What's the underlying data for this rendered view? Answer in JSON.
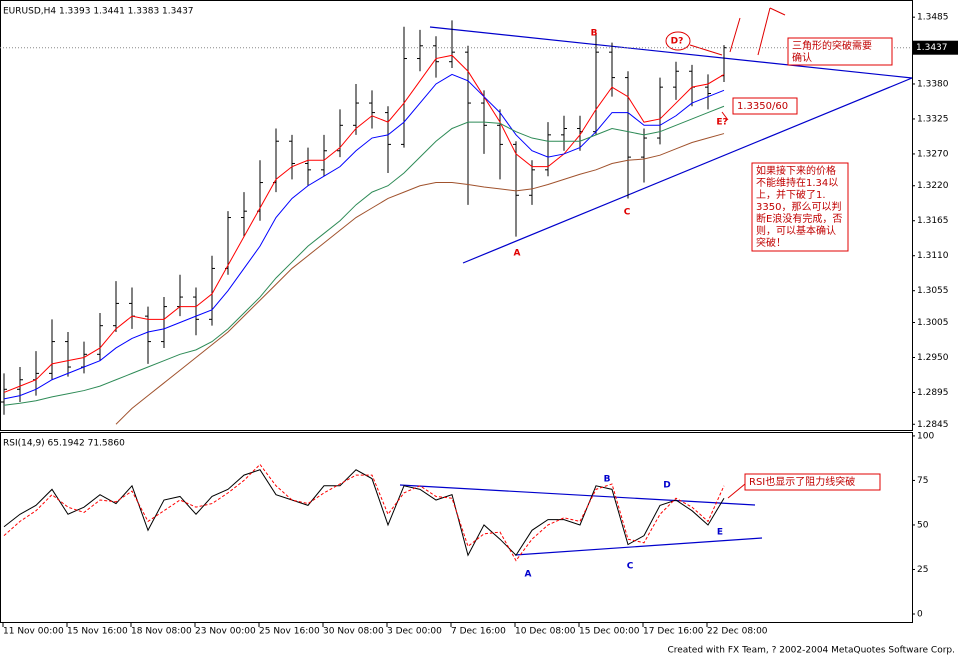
{
  "chart_data": [
    {
      "type": "ohlc",
      "title": "EURUSD,H4  1.3393 1.3441 1.3383 1.3437",
      "categories": [
        "11 Nov 00:00",
        null,
        null,
        null,
        "15 Nov 16:00",
        null,
        null,
        null,
        "18 Nov 08:00",
        null,
        null,
        null,
        "23 Nov 00:00",
        null,
        null,
        null,
        "25 Nov 16:00",
        null,
        null,
        null,
        "30 Nov 08:00",
        null,
        null,
        null,
        "3 Dec 00:00",
        null,
        null,
        null,
        "7 Dec 16:00",
        null,
        null,
        null,
        "10 Dec 08:00",
        null,
        null,
        null,
        "15 Dec 00:00",
        null,
        null,
        null,
        "17 Dec 16:00",
        null,
        null,
        null,
        "22 Dec 08:00",
        null
      ],
      "open": [
        1.288,
        1.29,
        1.2915,
        1.2925,
        1.2975,
        1.2935,
        1.2955,
        1.3,
        1.3035,
        1.3015,
        1.2975,
        1.303,
        1.3045,
        1.301,
        1.309,
        1.317,
        1.318,
        1.3225,
        1.329,
        1.3255,
        1.3245,
        1.3275,
        1.3315,
        1.335,
        1.3335,
        1.3285,
        1.342,
        1.344,
        1.3415,
        1.343,
        1.335,
        1.3315,
        1.3285,
        1.3205,
        1.3245,
        1.33,
        1.331,
        1.3305,
        1.343,
        1.339,
        1.3265,
        1.3295,
        1.3375,
        1.34,
        1.3375,
        1.3393
      ],
      "high": [
        1.2925,
        1.2935,
        1.296,
        1.301,
        1.299,
        1.2975,
        1.302,
        1.307,
        1.306,
        1.303,
        1.3045,
        1.308,
        1.306,
        1.311,
        1.318,
        1.321,
        1.326,
        1.331,
        1.33,
        1.328,
        1.33,
        1.334,
        1.338,
        1.337,
        1.3345,
        1.347,
        1.3465,
        1.3455,
        1.348,
        1.344,
        1.337,
        1.334,
        1.329,
        1.326,
        1.332,
        1.333,
        1.333,
        1.346,
        1.3445,
        1.34,
        1.331,
        1.339,
        1.3415,
        1.341,
        1.3395,
        1.3441
      ],
      "low": [
        1.286,
        1.288,
        1.289,
        1.2915,
        1.292,
        1.2925,
        1.2945,
        1.299,
        1.2995,
        1.294,
        1.2965,
        1.3015,
        1.2985,
        1.3,
        1.308,
        1.314,
        1.3165,
        1.321,
        1.323,
        1.322,
        1.3235,
        1.3265,
        1.33,
        1.331,
        1.324,
        1.328,
        1.34,
        1.339,
        1.3405,
        1.319,
        1.327,
        1.323,
        1.314,
        1.319,
        1.3235,
        1.3275,
        1.3275,
        1.33,
        1.336,
        1.32,
        1.3225,
        1.3285,
        1.3355,
        1.3345,
        1.334,
        1.3383
      ],
      "close": [
        1.29,
        1.2915,
        1.2925,
        1.2975,
        1.2935,
        1.2955,
        1.3,
        1.3035,
        1.3015,
        1.2975,
        1.303,
        1.3045,
        1.301,
        1.309,
        1.317,
        1.318,
        1.3225,
        1.329,
        1.3255,
        1.3245,
        1.3275,
        1.3315,
        1.335,
        1.3335,
        1.3285,
        1.342,
        1.344,
        1.3415,
        1.343,
        1.335,
        1.3315,
        1.3285,
        1.3205,
        1.3245,
        1.33,
        1.331,
        1.3305,
        1.343,
        1.339,
        1.3265,
        1.3295,
        1.3375,
        1.34,
        1.3375,
        1.3365,
        1.3437
      ],
      "color": "#000000",
      "series": [
        {
          "color": "#ff0000",
          "values": [
            1.2895,
            1.2905,
            1.2915,
            1.294,
            1.2945,
            1.295,
            1.2965,
            1.2995,
            1.3015,
            1.301,
            1.301,
            1.303,
            1.303,
            1.305,
            1.3095,
            1.314,
            1.3185,
            1.323,
            1.325,
            1.326,
            1.326,
            1.328,
            1.331,
            1.333,
            1.332,
            1.335,
            1.3385,
            1.342,
            1.3425,
            1.34,
            1.336,
            1.332,
            1.327,
            1.325,
            1.325,
            1.327,
            1.33,
            1.334,
            1.3375,
            1.336,
            1.332,
            1.3325,
            1.335,
            1.3375,
            1.338,
            1.3395
          ]
        },
        {
          "color": "#0000ff",
          "values": [
            1.2885,
            1.289,
            1.29,
            1.2915,
            1.2925,
            1.2935,
            1.2945,
            1.2965,
            1.298,
            1.299,
            1.2995,
            1.3005,
            1.3015,
            1.3025,
            1.3055,
            1.309,
            1.3125,
            1.317,
            1.32,
            1.322,
            1.3235,
            1.325,
            1.3275,
            1.3295,
            1.33,
            1.332,
            1.335,
            1.338,
            1.3395,
            1.3385,
            1.336,
            1.3335,
            1.33,
            1.3275,
            1.3265,
            1.327,
            1.328,
            1.3305,
            1.3335,
            1.3335,
            1.3315,
            1.3315,
            1.333,
            1.335,
            1.336,
            1.337
          ]
        },
        {
          "color": "#2e8b57",
          "values": [
            1.2875,
            1.2878,
            1.2882,
            1.2888,
            1.2893,
            1.2898,
            1.2905,
            1.2915,
            1.2925,
            1.2935,
            1.2945,
            1.2955,
            1.2962,
            1.2975,
            1.2995,
            1.302,
            1.3045,
            1.3075,
            1.31,
            1.3125,
            1.3145,
            1.3165,
            1.319,
            1.321,
            1.322,
            1.324,
            1.3265,
            1.329,
            1.331,
            1.332,
            1.332,
            1.3318,
            1.3305,
            1.3295,
            1.329,
            1.329,
            1.329,
            1.33,
            1.331,
            1.3305,
            1.33,
            1.3305,
            1.3315,
            1.3325,
            1.3335,
            1.3345
          ]
        },
        {
          "color": "#a0522d",
          "values": [
            null,
            null,
            null,
            null,
            null,
            null,
            null,
            1.2845,
            1.287,
            1.289,
            1.291,
            1.293,
            1.295,
            1.297,
            1.299,
            1.3015,
            1.304,
            1.3065,
            1.309,
            1.311,
            1.313,
            1.315,
            1.317,
            1.3185,
            1.32,
            1.321,
            1.322,
            1.3225,
            1.3225,
            1.3222,
            1.3218,
            1.3215,
            1.3212,
            1.3215,
            1.3222,
            1.323,
            1.3238,
            1.3245,
            1.3255,
            1.326,
            1.3262,
            1.3268,
            1.3278,
            1.3288,
            1.3295,
            1.3302
          ]
        }
      ],
      "ylim": [
        1.2836,
        1.3512
      ],
      "yticks": [
        1.3485,
        {
          "value": 1.338,
          "label": "1.3380"
        },
        1.3325,
        {
          "value": 1.327,
          "label": "1.3270"
        },
        {
          "value": 1.322,
          "label": "1.3220"
        },
        1.3165,
        {
          "value": 1.311,
          "label": "1.3110"
        },
        1.3055,
        1.3005,
        {
          "value": 1.295,
          "label": "1.2950"
        },
        1.2895,
        1.2845
      ],
      "last_price": {
        "value": 1.3437,
        "label": "1.3437"
      },
      "annotations": [
        "B",
        "A",
        "C",
        "D?",
        "E?"
      ],
      "notes": [
        [
          "三角形的突破需要",
          "确认"
        ],
        [
          "1.3350/60"
        ],
        [
          "如果接下来的价格",
          "不能维持在1.34以",
          "上，并下破了1.",
          "3350，那么可以判",
          "断E浪没有完成，否",
          "则，可以基本确认",
          "突破！"
        ]
      ]
    },
    {
      "type": "line",
      "title": "RSI(14,9) 65.1942 71.5860",
      "series": [
        {
          "color": "#000000",
          "values": [
            49,
            56,
            61,
            70,
            56,
            60,
            67,
            62,
            72,
            47,
            64,
            66,
            56,
            66,
            70,
            78,
            81,
            67,
            64,
            61,
            72,
            72,
            81,
            76,
            50,
            72,
            70,
            64,
            67,
            33,
            50,
            42,
            33,
            47,
            53,
            53,
            50,
            72,
            70,
            39,
            44,
            61,
            64,
            58,
            50,
            65
          ]
        },
        {
          "color": "#ff0000",
          "dashed": true,
          "values": [
            44,
            52,
            58,
            67,
            60,
            57,
            64,
            63,
            69,
            52,
            58,
            64,
            60,
            62,
            68,
            75,
            84,
            72,
            64,
            62,
            68,
            73,
            78,
            78,
            56,
            68,
            72,
            66,
            65,
            38,
            45,
            46,
            30,
            42,
            50,
            54,
            52,
            70,
            73,
            42,
            40,
            56,
            65,
            60,
            52,
            72
          ]
        }
      ],
      "ylim": [
        -4.5,
        102.2
      ],
      "yticks": [
        100,
        75,
        50,
        25,
        0
      ],
      "annotations": [
        "B",
        "D",
        "A",
        "C",
        "E"
      ],
      "notes": [
        [
          "RSI也显示了阻力线突破"
        ]
      ]
    }
  ],
  "footer": "Created with FX Team, ? 2002-2004 MetaQuotes Software Corp."
}
